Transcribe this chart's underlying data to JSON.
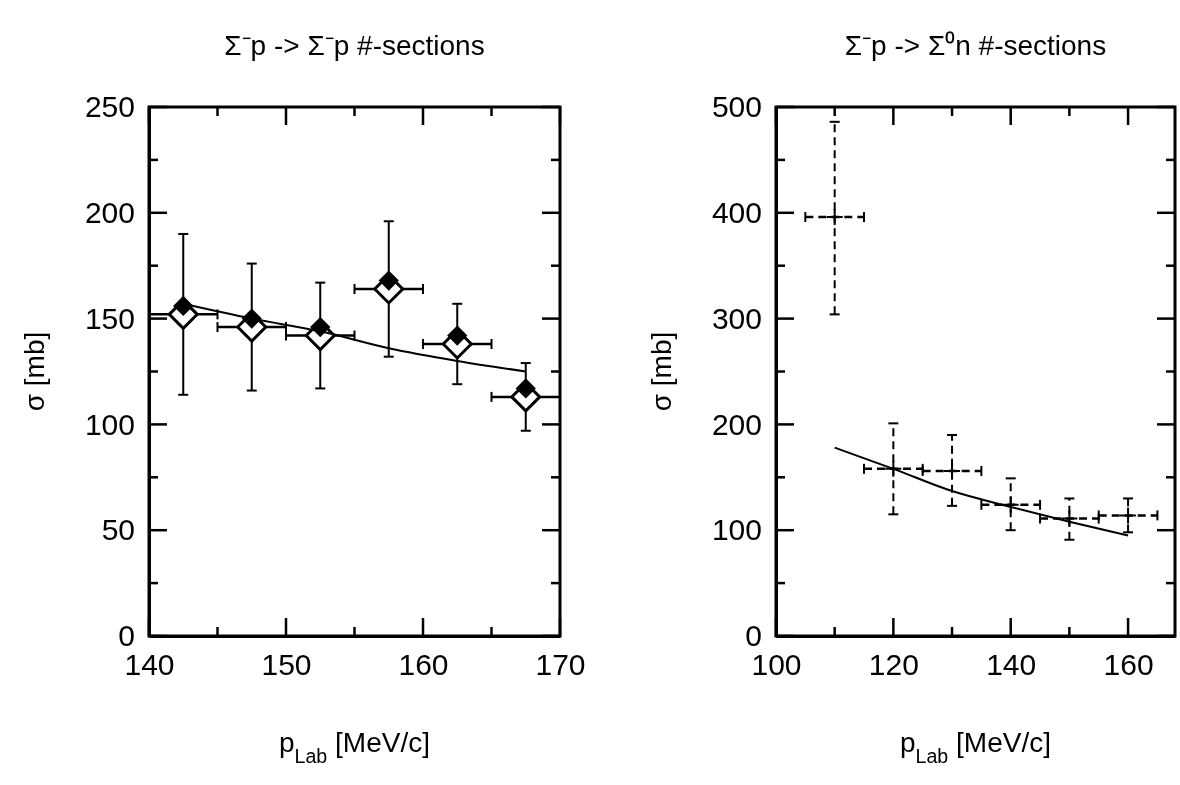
{
  "chart_data": [
    {
      "type": "scatter",
      "title": "Σ⁻p -> Σ⁻p #-sections",
      "xlabel": "p$_{Lab}$ [MeV/c]",
      "ylabel": "σ [mb]",
      "xlim": [
        140,
        170
      ],
      "ylim": [
        0,
        250
      ],
      "xticks": [
        140,
        {
          "value": 145,
          "label": null
        },
        150,
        {
          "value": 155,
          "label": null
        },
        160,
        {
          "value": 165,
          "label": null
        },
        170
      ],
      "yticks": [
        0,
        {
          "value": 25,
          "label": null
        },
        50,
        {
          "value": 75,
          "label": null
        },
        100,
        {
          "value": 125,
          "label": null
        },
        150,
        {
          "value": 175,
          "label": null
        },
        200,
        {
          "value": 225,
          "label": null
        },
        250
      ],
      "grid": false,
      "series": [
        {
          "color": "#000000",
          "marker": "diamond",
          "x": [
            142.5,
            147.5,
            152.5,
            157.5,
            162.5,
            167.5
          ],
          "values": [
            152,
            146,
            142,
            164,
            138,
            113
          ],
          "errors": [
            [
              114,
              190
            ],
            [
              116,
              176
            ],
            [
              117,
              167
            ],
            [
              132,
              196
            ],
            [
              119,
              157
            ],
            [
              97,
              129
            ]
          ],
          "xerrors": [
            [
              140,
              145
            ],
            2.5,
            2.5,
            2.5,
            2.5,
            2.5
          ]
        },
        {
          "color": "#000000",
          "marker": "diamond",
          "x": [
            142.5,
            147.5,
            152.5,
            157.5,
            162.5,
            167.5
          ],
          "values": [
            156,
            150,
            146,
            168,
            142,
            117
          ]
        },
        {
          "type": "line",
          "color": "#000000",
          "line_style": "solid",
          "x": [
            142.5,
            147.5,
            152.5,
            157.5,
            162.5,
            167.5
          ],
          "values": [
            157,
            150,
            144,
            136,
            130,
            125
          ]
        }
      ]
    },
    {
      "type": "scatter",
      "title": "Σ⁻p -> Σ⁰n #-sections",
      "xlabel": "p$_{Lab}$ [MeV/c]",
      "ylabel": "σ [mb]",
      "xlim": [
        100,
        168
      ],
      "ylim": [
        0,
        500
      ],
      "xticks": [
        100,
        {
          "value": 110,
          "label": null
        },
        120,
        {
          "value": 130,
          "label": null
        },
        140,
        {
          "value": 150,
          "label": null
        },
        160
      ],
      "yticks": [
        0,
        {
          "value": 50,
          "label": null
        },
        100,
        {
          "value": 150,
          "label": null
        },
        200,
        {
          "value": 250,
          "label": null
        },
        300,
        {
          "value": 350,
          "label": null
        },
        400,
        {
          "value": 450,
          "label": null
        },
        500
      ],
      "grid": false,
      "series": [
        {
          "color": "#000000",
          "marker": "cross",
          "line_style": "dashed",
          "x": [
            110,
            120,
            130,
            140,
            150,
            160
          ],
          "values": [
            396,
            158,
            156,
            124,
            111,
            114
          ],
          "errors": [
            [
              304,
              486
            ],
            [
              115,
              201
            ],
            [
              123,
              190
            ],
            [
              100,
              149
            ],
            [
              91,
              130
            ],
            [
              98,
              130
            ]
          ],
          "xerrors": [
            5,
            5,
            5,
            5,
            5,
            5
          ]
        },
        {
          "type": "line",
          "color": "#000000",
          "line_style": "solid",
          "x": [
            110,
            120,
            130,
            140,
            150,
            160
          ],
          "values": [
            178,
            158,
            137,
            122,
            108,
            95
          ]
        }
      ]
    }
  ]
}
